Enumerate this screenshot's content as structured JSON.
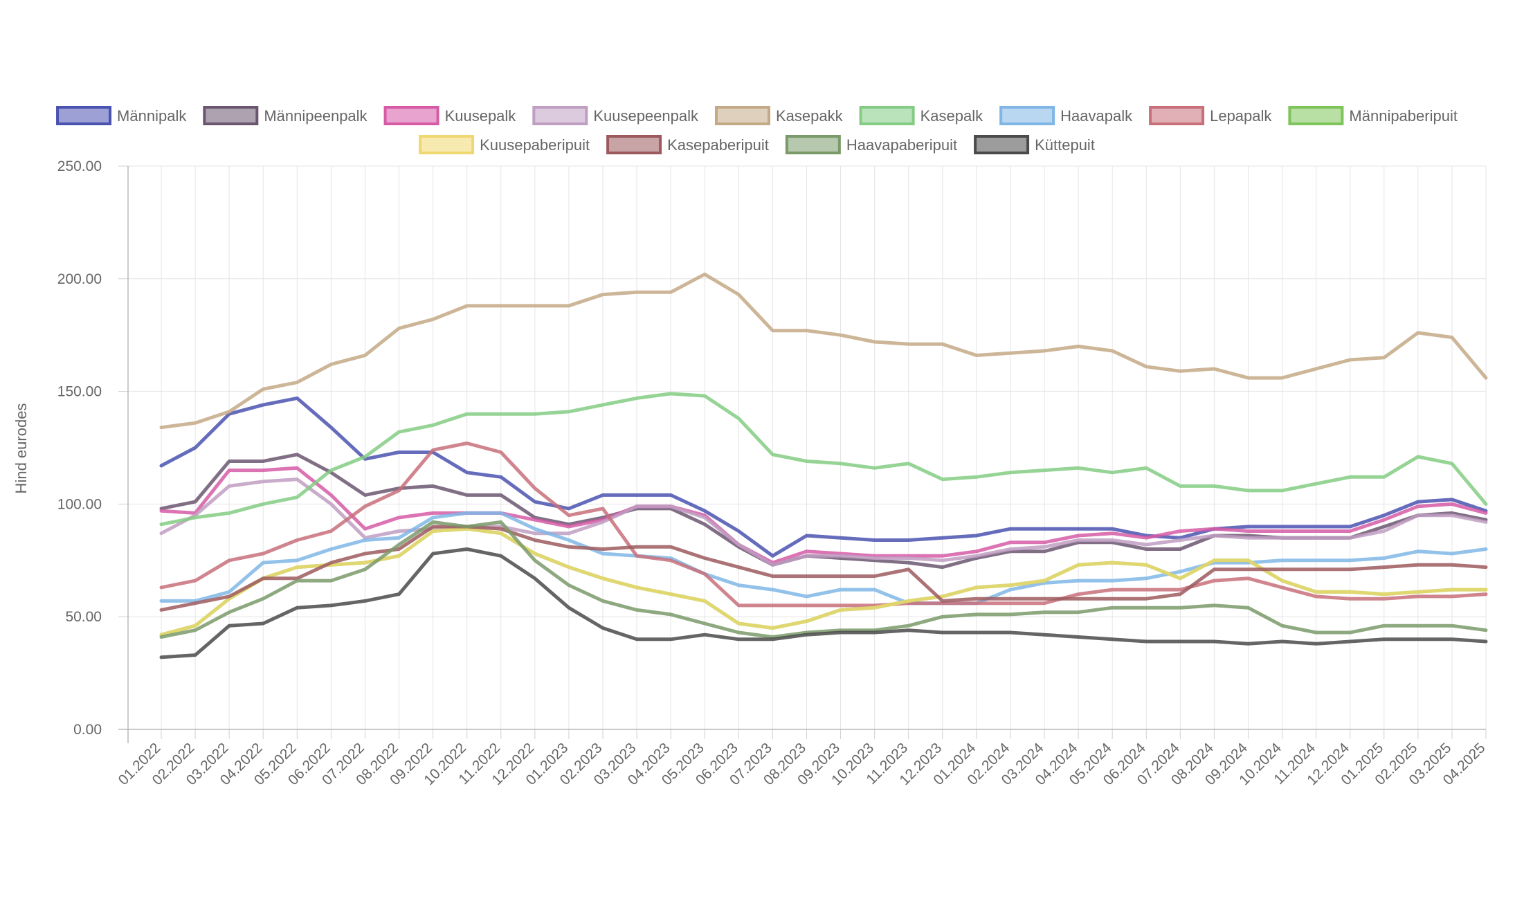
{
  "chart_data": {
    "type": "line",
    "ylabel": "Hind eurodes",
    "ylim": [
      0,
      250
    ],
    "yticks": [
      "0.00",
      "50.00",
      "100.00",
      "150.00",
      "200.00",
      "250.00"
    ],
    "grid": true,
    "legend_position": "top",
    "categories": [
      "01.2022",
      "02.2022",
      "03.2022",
      "04.2022",
      "05.2022",
      "06.2022",
      "07.2022",
      "08.2022",
      "09.2022",
      "10.2022",
      "11.2022",
      "12.2022",
      "01.2023",
      "02.2023",
      "03.2023",
      "04.2023",
      "05.2023",
      "06.2023",
      "07.2023",
      "08.2023",
      "09.2023",
      "10.2023",
      "11.2023",
      "12.2023",
      "01.2024",
      "02.2024",
      "03.2024",
      "04.2024",
      "05.2024",
      "06.2024",
      "07.2024",
      "08.2024",
      "09.2024",
      "10.2024",
      "11.2024",
      "12.2024",
      "01.2025",
      "02.2025",
      "03.2025",
      "04.2025"
    ],
    "series": [
      {
        "name": "Männipalk",
        "color": "#4a52b0",
        "values": [
          117,
          125,
          140,
          144,
          147,
          134,
          120,
          123,
          123,
          114,
          112,
          101,
          98,
          104,
          104,
          104,
          97,
          88,
          77,
          86,
          85,
          84,
          84,
          85,
          86,
          89,
          89,
          89,
          89,
          86,
          85,
          89,
          90,
          90,
          90,
          90,
          95,
          101,
          102,
          97
        ]
      },
      {
        "name": "Männipeenpalk",
        "color": "#6b5670",
        "values": [
          98,
          101,
          119,
          119,
          122,
          114,
          104,
          107,
          108,
          104,
          104,
          94,
          91,
          94,
          98,
          98,
          91,
          81,
          73,
          77,
          76,
          75,
          74,
          72,
          76,
          79,
          79,
          83,
          83,
          80,
          80,
          86,
          86,
          85,
          85,
          85,
          90,
          95,
          96,
          93
        ]
      },
      {
        "name": "Kuusepalk",
        "color": "#d65aa6",
        "values": [
          97,
          96,
          115,
          115,
          116,
          104,
          89,
          94,
          96,
          96,
          96,
          93,
          90,
          93,
          99,
          99,
          95,
          82,
          74,
          79,
          78,
          77,
          77,
          77,
          79,
          83,
          83,
          86,
          87,
          85,
          88,
          89,
          88,
          88,
          88,
          88,
          93,
          99,
          100,
          96
        ]
      },
      {
        "name": "Kuusepeenpalk",
        "color": "#bf9ec2",
        "values": [
          87,
          95,
          108,
          110,
          111,
          100,
          85,
          88,
          89,
          90,
          90,
          87,
          87,
          92,
          99,
          99,
          94,
          82,
          73,
          77,
          77,
          76,
          76,
          75,
          77,
          80,
          81,
          84,
          84,
          82,
          84,
          86,
          85,
          85,
          85,
          85,
          88,
          95,
          95,
          92
        ]
      },
      {
        "name": "Kasepakk",
        "color": "#c4a986",
        "values": [
          134,
          136,
          141,
          151,
          154,
          162,
          166,
          178,
          182,
          188,
          188,
          188,
          188,
          193,
          194,
          194,
          202,
          193,
          177,
          177,
          175,
          172,
          171,
          171,
          166,
          167,
          168,
          170,
          168,
          161,
          159,
          160,
          156,
          156,
          160,
          164,
          165,
          176,
          174,
          156
        ]
      },
      {
        "name": "Kasepalk",
        "color": "#84cc84",
        "values": [
          91,
          94,
          96,
          100,
          103,
          115,
          121,
          132,
          135,
          140,
          140,
          140,
          141,
          144,
          147,
          149,
          148,
          138,
          122,
          119,
          118,
          116,
          118,
          111,
          112,
          114,
          115,
          116,
          114,
          116,
          108,
          108,
          106,
          106,
          109,
          112,
          112,
          121,
          118,
          100
        ]
      },
      {
        "name": "Haavapalk",
        "color": "#7fb6e6",
        "values": [
          57,
          57,
          61,
          74,
          75,
          80,
          84,
          85,
          94,
          96,
          96,
          89,
          84,
          78,
          77,
          76,
          69,
          64,
          62,
          59,
          62,
          62,
          56,
          56,
          56,
          62,
          65,
          66,
          66,
          67,
          70,
          74,
          74,
          75,
          75,
          75,
          76,
          79,
          78,
          80
        ]
      },
      {
        "name": "Lepapalk",
        "color": "#c8707a",
        "values": [
          63,
          66,
          75,
          78,
          84,
          88,
          99,
          106,
          124,
          127,
          123,
          107,
          95,
          98,
          77,
          75,
          69,
          55,
          55,
          55,
          55,
          55,
          56,
          56,
          56,
          56,
          56,
          60,
          62,
          62,
          62,
          66,
          67,
          63,
          59,
          58,
          58,
          59,
          59,
          60
        ]
      },
      {
        "name": "Männipaberipuit",
        "color": "#7dc45a",
        "values": [
          42,
          46,
          58,
          67,
          72,
          73,
          74,
          77,
          88,
          89,
          87,
          78,
          72,
          67,
          63,
          60,
          57,
          47,
          45,
          48,
          53,
          54,
          57,
          59,
          63,
          64,
          66,
          73,
          74,
          73,
          67,
          75,
          75,
          66,
          61,
          61,
          60,
          61,
          62,
          62
        ]
      },
      {
        "name": "Kuusepaberipuit",
        "color": "#f0d870",
        "values": [
          42,
          46,
          58,
          67,
          72,
          73,
          74,
          77,
          88,
          89,
          87,
          78,
          72,
          67,
          63,
          60,
          57,
          47,
          45,
          48,
          53,
          54,
          57,
          59,
          63,
          64,
          66,
          73,
          74,
          73,
          67,
          75,
          75,
          66,
          61,
          61,
          60,
          61,
          62,
          62
        ]
      },
      {
        "name": "Kasepaberipuit",
        "color": "#9c5a5e",
        "values": [
          53,
          56,
          59,
          67,
          67,
          74,
          78,
          80,
          90,
          90,
          89,
          84,
          81,
          80,
          81,
          81,
          76,
          72,
          68,
          68,
          68,
          68,
          71,
          57,
          58,
          58,
          58,
          58,
          58,
          58,
          60,
          71,
          71,
          71,
          71,
          71,
          72,
          73,
          73,
          72
        ]
      },
      {
        "name": "Haavapaberipuit",
        "color": "#7a9a6a",
        "values": [
          41,
          44,
          52,
          58,
          66,
          66,
          71,
          82,
          92,
          90,
          92,
          75,
          64,
          57,
          53,
          51,
          47,
          43,
          41,
          43,
          44,
          44,
          46,
          50,
          51,
          51,
          52,
          52,
          54,
          54,
          54,
          55,
          54,
          46,
          43,
          43,
          46,
          46,
          46,
          44
        ]
      },
      {
        "name": "Küttepuit",
        "color": "#4a4a4a",
        "values": [
          32,
          33,
          46,
          47,
          54,
          55,
          57,
          60,
          78,
          80,
          77,
          67,
          54,
          45,
          40,
          40,
          42,
          40,
          40,
          42,
          43,
          43,
          44,
          43,
          43,
          43,
          42,
          41,
          40,
          39,
          39,
          39,
          38,
          39,
          38,
          39,
          40,
          40,
          40,
          39
        ]
      }
    ]
  }
}
